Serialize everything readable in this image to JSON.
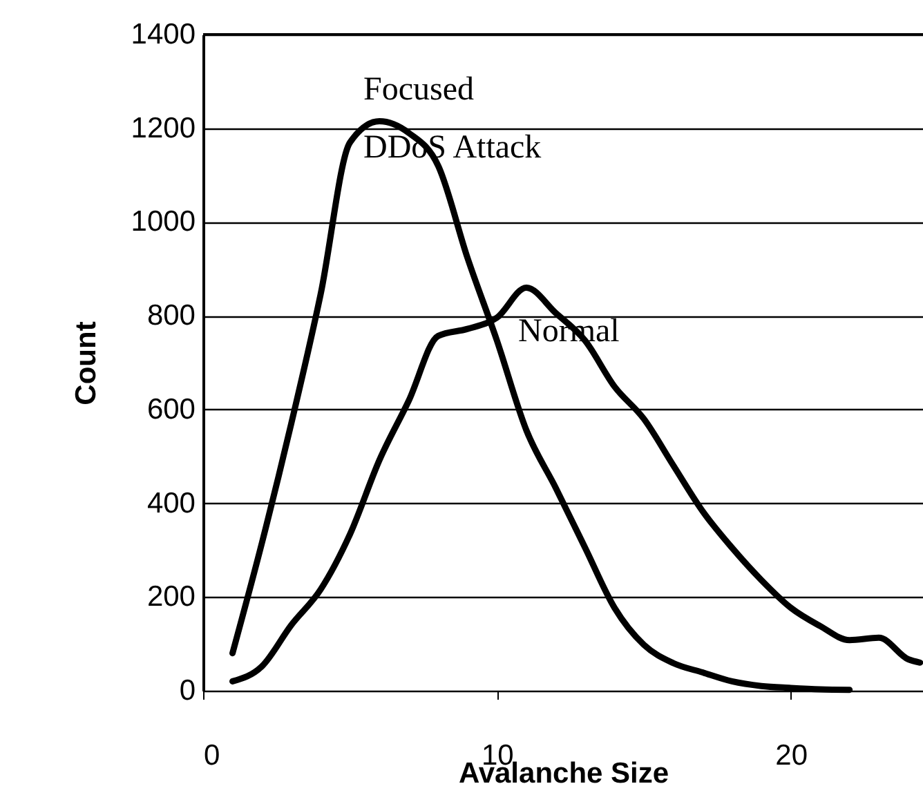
{
  "chart_data": {
    "type": "line",
    "xlabel": "Avalanche Size",
    "ylabel": "Count",
    "xlim": [
      0,
      24.5
    ],
    "xticks": [
      0,
      10,
      20
    ],
    "ylim": [
      0,
      1400
    ],
    "yticks": [
      0,
      200,
      400,
      600,
      800,
      1000,
      1200,
      1400
    ],
    "grid": "y",
    "line_style": "solid",
    "marker": "none",
    "series": [
      {
        "color": "#000000",
        "x": [
          1,
          2,
          3,
          4,
          5,
          6,
          7,
          8,
          9,
          10,
          11,
          12,
          13,
          14,
          15,
          16,
          17,
          18,
          19,
          20,
          21,
          22
        ],
        "values": [
          80,
          315,
          570,
          846,
          1170,
          1215,
          1190,
          1120,
          923,
          747,
          556,
          433,
          305,
          177,
          98,
          59,
          39,
          20,
          10,
          6,
          3,
          2
        ]
      },
      {
        "color": "#000000",
        "x": [
          1,
          2,
          3,
          4,
          5,
          6,
          7,
          8,
          9,
          10,
          11,
          12,
          13,
          14,
          15,
          16,
          17,
          18,
          19,
          20,
          21,
          22,
          23,
          24,
          24.4
        ],
        "values": [
          20,
          52,
          140,
          216,
          334,
          492,
          619,
          757,
          772,
          796,
          860,
          806,
          747,
          649,
          580,
          481,
          383,
          305,
          236,
          177,
          138,
          108,
          113,
          67,
          60
        ]
      }
    ],
    "annotations": [
      "Focused",
      "DDoS Attack",
      "Normal"
    ]
  }
}
